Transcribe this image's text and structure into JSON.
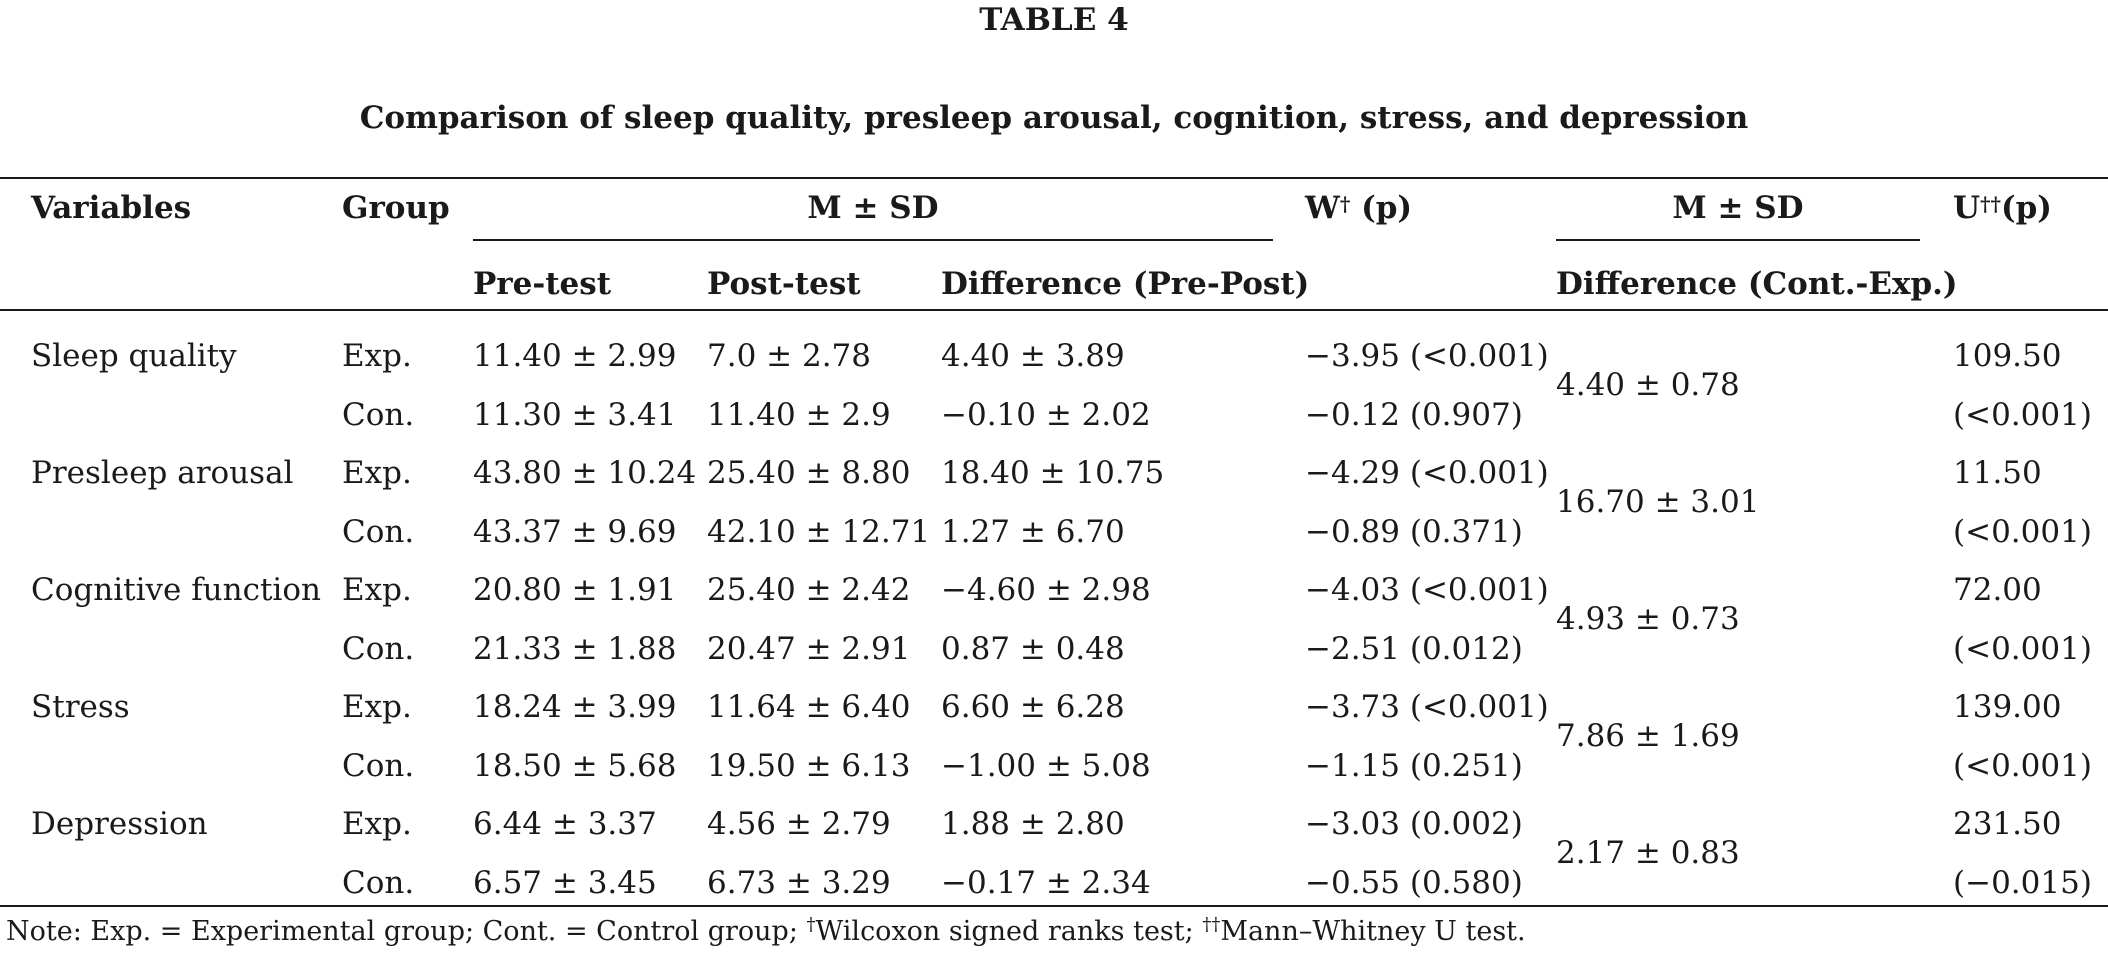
{
  "table": {
    "label": "TABLE 4",
    "title": "Comparison of sleep quality, presleep arousal, cognition, stress, and depression",
    "headers": {
      "variables": "Variables",
      "group": "Group",
      "msd_left": "M ± SD",
      "pretest": "Pre-test",
      "posttest": "Post-test",
      "diff_prepost": "Difference (Pre-Post)",
      "w_symbol": "W",
      "w_dagger": "†",
      "w_p": "(p)",
      "msd_right": "M ± SD",
      "diff_contexp": "Difference (Cont.-Exp.)",
      "u_symbol": "U",
      "u_dagger": "††",
      "u_p": "(p)"
    },
    "rows": [
      {
        "variable": "Sleep quality",
        "exp": {
          "group": "Exp.",
          "pre": "11.40 ± 2.99",
          "post": "7.0 ± 2.78",
          "diff": "4.40 ± 3.89",
          "w": "−3.95 (<0.001)"
        },
        "con": {
          "group": "Con.",
          "pre": "11.30 ± 3.41",
          "post": "11.40 ± 2.9",
          "diff": "−0.10 ± 2.02",
          "w": "−0.12 (0.907)"
        },
        "diff_ce": "4.40 ± 0.78",
        "u": "109.50",
        "u_p": "(<0.001)"
      },
      {
        "variable": "Presleep arousal",
        "exp": {
          "group": "Exp.",
          "pre": "43.80 ± 10.24",
          "post": "25.40 ± 8.80",
          "diff": "18.40 ± 10.75",
          "w": "−4.29 (<0.001)"
        },
        "con": {
          "group": "Con.",
          "pre": "43.37 ± 9.69",
          "post": "42.10 ± 12.71",
          "diff": "1.27 ± 6.70",
          "w": "−0.89 (0.371)"
        },
        "diff_ce": "16.70 ± 3.01",
        "u": "11.50",
        "u_p": "(<0.001)"
      },
      {
        "variable": "Cognitive function",
        "exp": {
          "group": "Exp.",
          "pre": "20.80 ± 1.91",
          "post": "25.40 ± 2.42",
          "diff": "−4.60 ± 2.98",
          "w": "−4.03 (<0.001)"
        },
        "con": {
          "group": "Con.",
          "pre": "21.33 ± 1.88",
          "post": "20.47 ± 2.91",
          "diff": "0.87 ± 0.48",
          "w": "−2.51 (0.012)"
        },
        "diff_ce": "4.93 ± 0.73",
        "u": "72.00",
        "u_p": "(<0.001)"
      },
      {
        "variable": "Stress",
        "exp": {
          "group": "Exp.",
          "pre": "18.24 ± 3.99",
          "post": "11.64 ± 6.40",
          "diff": "6.60 ± 6.28",
          "w": "−3.73 (<0.001)"
        },
        "con": {
          "group": "Con.",
          "pre": "18.50 ± 5.68",
          "post": "19.50 ± 6.13",
          "diff": "−1.00 ± 5.08",
          "w": "−1.15 (0.251)"
        },
        "diff_ce": "7.86 ± 1.69",
        "u": "139.00",
        "u_p": "(<0.001)"
      },
      {
        "variable": "Depression",
        "exp": {
          "group": "Exp.",
          "pre": "6.44 ± 3.37",
          "post": "4.56 ± 2.79",
          "diff": "1.88 ± 2.80",
          "w": "−3.03 (0.002)"
        },
        "con": {
          "group": "Con.",
          "pre": "6.57 ± 3.45",
          "post": "6.73 ± 3.29",
          "diff": "−0.17 ± 2.34",
          "w": "−0.55 (0.580)"
        },
        "diff_ce": "2.17 ± 0.83",
        "u": "231.50",
        "u_p": "(−0.015)"
      }
    ],
    "note": {
      "part1": "Note: Exp. = Experimental group; Cont. = Control group; ",
      "dagger1": "†",
      "part2": "Wilcoxon signed ranks test; ",
      "dagger2": "††",
      "part3": "Mann–Whitney U test."
    }
  }
}
